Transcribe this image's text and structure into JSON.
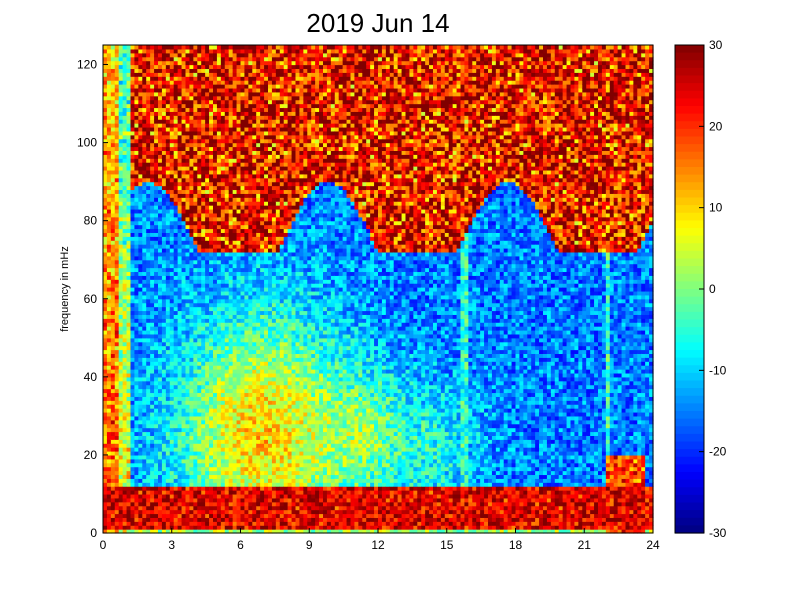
{
  "chart_data": {
    "type": "heatmap",
    "title": "2019 Jun 14",
    "xlabel": "",
    "ylabel": "frequency in mHz",
    "xlim": [
      0,
      24
    ],
    "ylim": [
      0,
      125
    ],
    "x_ticks": [
      "0",
      "3",
      "6",
      "9",
      "12",
      "15",
      "18",
      "21",
      "24"
    ],
    "y_ticks": [
      "0",
      "20",
      "40",
      "60",
      "80",
      "100",
      "120"
    ],
    "colorbar": {
      "colormap": "jet",
      "range": [
        -30,
        30
      ],
      "ticks": [
        "30",
        "20",
        "10",
        "0",
        "-10",
        "-20",
        "-30"
      ]
    },
    "grid": false,
    "description_bands": [
      {
        "freq_range_mHz": [
          0,
          12
        ],
        "hours": [
          0,
          24
        ],
        "level": 27
      },
      {
        "freq_range_mHz": [
          12,
          45
        ],
        "hours": [
          4,
          12
        ],
        "level": 12
      },
      {
        "freq_range_mHz": [
          75,
          125
        ],
        "hours": [
          1,
          24
        ],
        "level": 28
      },
      {
        "freq_range_mHz": [
          0,
          125
        ],
        "hours": [
          0,
          1
        ],
        "level": 10
      }
    ],
    "vertical_streaks_hours": [
      15.8,
      22.0
    ]
  }
}
